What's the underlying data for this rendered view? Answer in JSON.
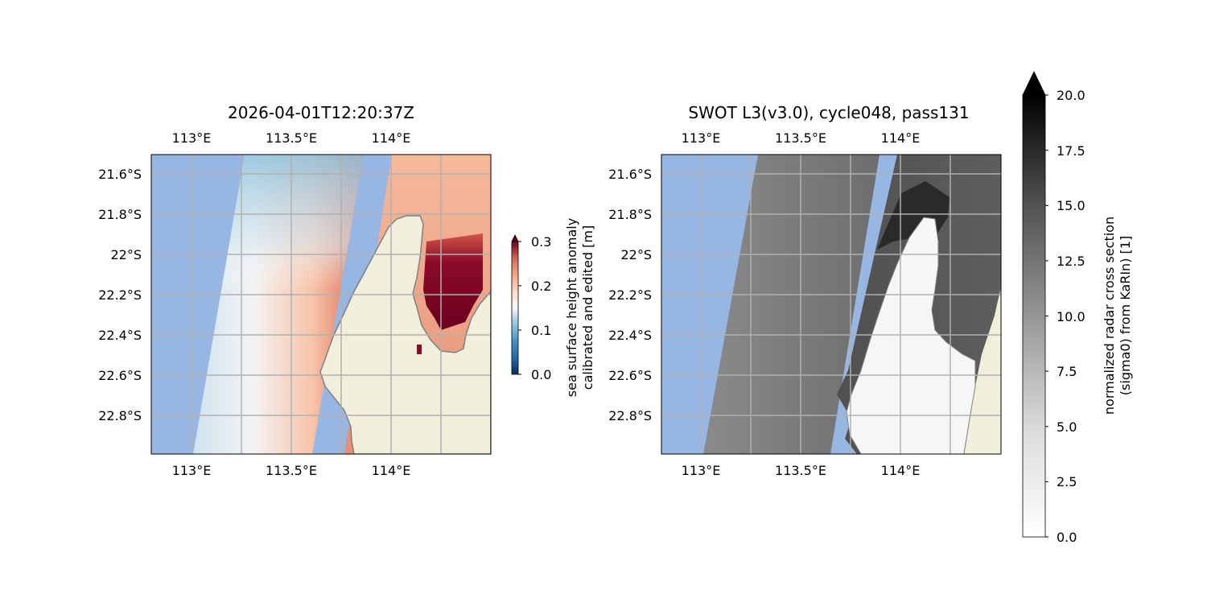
{
  "panels": [
    {
      "id": "ssha",
      "title": "2026-04-01T12:20:37Z",
      "top_lon_ticks": [
        "113°E",
        "113.5°E",
        "114°E"
      ],
      "bottom_lon_ticks": [
        "113°E",
        "113.5°E",
        "114°E"
      ],
      "lat_ticks": [
        "21.6°S",
        "21.8°S",
        "22°S",
        "22.2°S",
        "22.4°S",
        "22.6°S",
        "22.8°S"
      ]
    },
    {
      "id": "sigma0",
      "title": "SWOT L3(v3.0), cycle048, pass131",
      "top_lon_ticks": [
        "113°E",
        "113.5°E",
        "114°E"
      ],
      "bottom_lon_ticks": [
        "113°E",
        "113.5°E",
        "114°E"
      ],
      "lat_ticks": [
        "21.6°S",
        "21.8°S",
        "22°S",
        "22.2°S",
        "22.4°S",
        "22.6°S",
        "22.8°S"
      ]
    }
  ],
  "colorbars": [
    {
      "id": "ssha-colorbar",
      "label_line1": "sea surface height anomaly",
      "label_line2": "calibrated and edited [m]",
      "ticks": [
        "0.0",
        "0.1",
        "0.2",
        "0.3"
      ],
      "colormap": "RdBu_r",
      "range": [
        0.0,
        0.3
      ],
      "extend": "max"
    },
    {
      "id": "sigma0-colorbar",
      "label_line1": "normalized radar cross section",
      "label_line2": "(sigma0) from KaRIn) [1]",
      "ticks": [
        "0.0",
        "2.5",
        "5.0",
        "7.5",
        "10.0",
        "12.5",
        "15.0",
        "17.5",
        "20.0"
      ],
      "colormap": "Greys",
      "range": [
        0.0,
        20.0
      ],
      "extend": "max"
    }
  ],
  "colors": {
    "ocean": "#97b6e1",
    "land": "#efefdb",
    "coastline": "#808080",
    "grid": "#b0b0b0"
  }
}
